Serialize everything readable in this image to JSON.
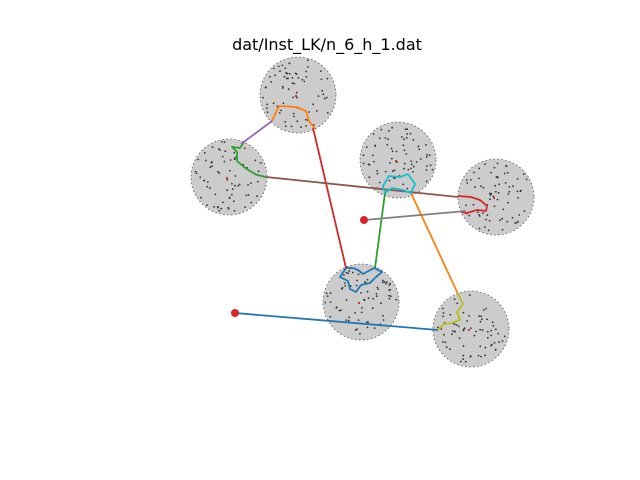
{
  "figure": {
    "title": "dat/Inst_LK/n_6_h_1.dat",
    "colors": {
      "disk_fill": "#cccccc",
      "disk_edge": "#555555",
      "point": "#333333",
      "depot": "#d62728",
      "blue": "#1f77b4",
      "orange": "#ff7f0e",
      "green": "#2ca02c",
      "red": "#d62728",
      "purple": "#9467bd",
      "brown": "#8c564b",
      "gray": "#7f7f7f",
      "olive": "#bcbd22",
      "cyan": "#17becf"
    }
  }
}
